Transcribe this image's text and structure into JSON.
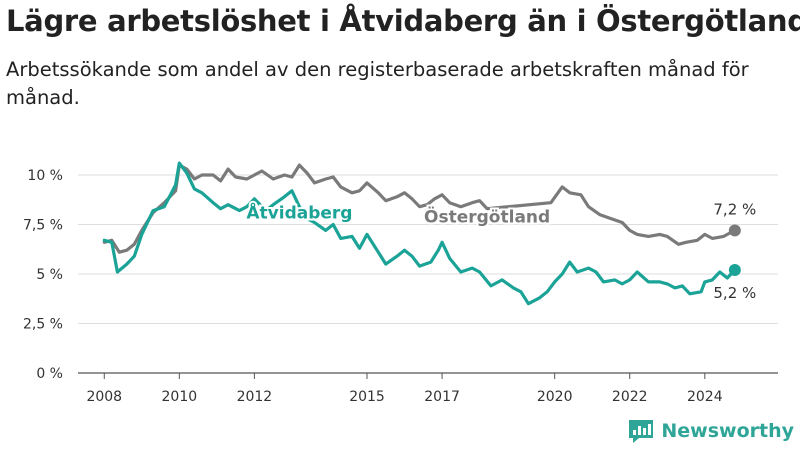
{
  "title": "Lägre arbetslöshet i Åtvidaberg än i Östergötland",
  "subtitle": "Arbetssökande som andel av den registerbaserade arbetskraften månad för månad.",
  "brand": {
    "name": "Newsworthy",
    "icon": "newsworthy-logo-icon"
  },
  "chart_data": {
    "type": "line",
    "title": "Lägre arbetslöshet i Åtvidaberg än i Östergötland",
    "subtitle": "Arbetssökande som andel av den registerbaserade arbetskraften månad för månad.",
    "xlabel": "",
    "ylabel": "",
    "xlim": [
      2007.3,
      2025.95
    ],
    "ylim": [
      0,
      10
    ],
    "grid": true,
    "x_ticks": [
      {
        "value": 2008,
        "label": "2008"
      },
      {
        "value": 2010,
        "label": "2010"
      },
      {
        "value": 2012,
        "label": "2012"
      },
      {
        "value": 2015,
        "label": "2015"
      },
      {
        "value": 2017,
        "label": "2017"
      },
      {
        "value": 2020,
        "label": "2020"
      },
      {
        "value": 2022,
        "label": "2022"
      },
      {
        "value": 2024,
        "label": "2024"
      }
    ],
    "y_ticks": [
      {
        "value": 0,
        "label": "0 %"
      },
      {
        "value": 2.5,
        "label": "2,5 %"
      },
      {
        "value": 5,
        "label": "5 %"
      },
      {
        "value": 7.5,
        "label": "7,5 %"
      },
      {
        "value": 10,
        "label": "10 %"
      }
    ],
    "series": [
      {
        "name": "Östergötland",
        "color": "#7a7a7a",
        "end_label": "7,2 %",
        "points": [
          [
            2008.0,
            6.6
          ],
          [
            2008.2,
            6.7
          ],
          [
            2008.4,
            6.1
          ],
          [
            2008.6,
            6.2
          ],
          [
            2008.8,
            6.5
          ],
          [
            2009.0,
            7.2
          ],
          [
            2009.3,
            8.1
          ],
          [
            2009.6,
            8.6
          ],
          [
            2009.9,
            9.2
          ],
          [
            2010.0,
            10.5
          ],
          [
            2010.2,
            10.3
          ],
          [
            2010.4,
            9.8
          ],
          [
            2010.6,
            10.0
          ],
          [
            2010.9,
            10.0
          ],
          [
            2011.1,
            9.7
          ],
          [
            2011.3,
            10.3
          ],
          [
            2011.5,
            9.9
          ],
          [
            2011.8,
            9.8
          ],
          [
            2012.0,
            10.0
          ],
          [
            2012.2,
            10.2
          ],
          [
            2012.5,
            9.8
          ],
          [
            2012.8,
            10.0
          ],
          [
            2013.0,
            9.9
          ],
          [
            2013.2,
            10.5
          ],
          [
            2013.4,
            10.1
          ],
          [
            2013.6,
            9.6
          ],
          [
            2013.9,
            9.8
          ],
          [
            2014.1,
            9.9
          ],
          [
            2014.3,
            9.4
          ],
          [
            2014.6,
            9.1
          ],
          [
            2014.8,
            9.2
          ],
          [
            2015.0,
            9.6
          ],
          [
            2015.3,
            9.1
          ],
          [
            2015.5,
            8.7
          ],
          [
            2015.8,
            8.9
          ],
          [
            2016.0,
            9.1
          ],
          [
            2016.2,
            8.8
          ],
          [
            2016.4,
            8.4
          ],
          [
            2016.6,
            8.5
          ],
          [
            2016.8,
            8.8
          ],
          [
            2017.0,
            9.0
          ],
          [
            2017.2,
            8.6
          ],
          [
            2017.5,
            8.4
          ],
          [
            2017.8,
            8.6
          ],
          [
            2018.0,
            8.7
          ],
          [
            2018.2,
            8.3
          ],
          [
            2019.9,
            8.6
          ],
          [
            2020.2,
            9.4
          ],
          [
            2020.4,
            9.1
          ],
          [
            2020.7,
            9.0
          ],
          [
            2020.9,
            8.4
          ],
          [
            2021.2,
            8.0
          ],
          [
            2021.5,
            7.8
          ],
          [
            2021.8,
            7.6
          ],
          [
            2022.0,
            7.2
          ],
          [
            2022.2,
            7.0
          ],
          [
            2022.5,
            6.9
          ],
          [
            2022.8,
            7.0
          ],
          [
            2023.0,
            6.9
          ],
          [
            2023.3,
            6.5
          ],
          [
            2023.5,
            6.6
          ],
          [
            2023.8,
            6.7
          ],
          [
            2024.0,
            7.0
          ],
          [
            2024.2,
            6.8
          ],
          [
            2024.5,
            6.9
          ],
          [
            2024.8,
            7.2
          ]
        ]
      },
      {
        "name": "Åtvidaberg",
        "color": "#1aa396",
        "end_label": "5,2 %",
        "points": [
          [
            2008.0,
            6.7
          ],
          [
            2008.2,
            6.6
          ],
          [
            2008.35,
            5.1
          ],
          [
            2008.6,
            5.5
          ],
          [
            2008.8,
            5.9
          ],
          [
            2009.0,
            7.0
          ],
          [
            2009.3,
            8.2
          ],
          [
            2009.6,
            8.4
          ],
          [
            2009.9,
            9.5
          ],
          [
            2010.0,
            10.6
          ],
          [
            2010.2,
            10.1
          ],
          [
            2010.4,
            9.3
          ],
          [
            2010.6,
            9.1
          ],
          [
            2010.9,
            8.6
          ],
          [
            2011.1,
            8.3
          ],
          [
            2011.3,
            8.5
          ],
          [
            2011.6,
            8.2
          ],
          [
            2011.8,
            8.4
          ],
          [
            2012.0,
            8.8
          ],
          [
            2012.3,
            8.2
          ],
          [
            2012.5,
            8.5
          ],
          [
            2012.8,
            8.9
          ],
          [
            2013.0,
            9.2
          ],
          [
            2013.2,
            8.4
          ],
          [
            2013.4,
            7.8
          ],
          [
            2013.6,
            7.6
          ],
          [
            2013.9,
            7.2
          ],
          [
            2014.1,
            7.5
          ],
          [
            2014.3,
            6.8
          ],
          [
            2014.6,
            6.9
          ],
          [
            2014.8,
            6.3
          ],
          [
            2015.0,
            7.0
          ],
          [
            2015.3,
            6.1
          ],
          [
            2015.5,
            5.5
          ],
          [
            2015.8,
            5.9
          ],
          [
            2016.0,
            6.2
          ],
          [
            2016.2,
            5.9
          ],
          [
            2016.4,
            5.4
          ],
          [
            2016.7,
            5.6
          ],
          [
            2016.9,
            6.2
          ],
          [
            2017.0,
            6.6
          ],
          [
            2017.2,
            5.8
          ],
          [
            2017.5,
            5.1
          ],
          [
            2017.8,
            5.3
          ],
          [
            2018.0,
            5.1
          ],
          [
            2018.3,
            4.4
          ],
          [
            2018.6,
            4.7
          ],
          [
            2018.9,
            4.3
          ],
          [
            2019.1,
            4.1
          ],
          [
            2019.3,
            3.5
          ],
          [
            2019.6,
            3.8
          ],
          [
            2019.8,
            4.1
          ],
          [
            2020.0,
            4.6
          ],
          [
            2020.2,
            5.0
          ],
          [
            2020.4,
            5.6
          ],
          [
            2020.6,
            5.1
          ],
          [
            2020.9,
            5.3
          ],
          [
            2021.1,
            5.1
          ],
          [
            2021.3,
            4.6
          ],
          [
            2021.6,
            4.7
          ],
          [
            2021.8,
            4.5
          ],
          [
            2022.0,
            4.7
          ],
          [
            2022.2,
            5.1
          ],
          [
            2022.5,
            4.6
          ],
          [
            2022.8,
            4.6
          ],
          [
            2023.0,
            4.5
          ],
          [
            2023.2,
            4.3
          ],
          [
            2023.4,
            4.4
          ],
          [
            2023.6,
            4.0
          ],
          [
            2023.9,
            4.1
          ],
          [
            2024.0,
            4.6
          ],
          [
            2024.2,
            4.7
          ],
          [
            2024.4,
            5.1
          ],
          [
            2024.6,
            4.8
          ],
          [
            2024.8,
            5.2
          ]
        ]
      }
    ],
    "annotations": [
      {
        "text": "Åtvidaberg",
        "series": "Åtvidaberg",
        "x": 2013.2,
        "y": 7.8
      },
      {
        "text": "Östergötland",
        "series": "Östergötland",
        "x": 2018.2,
        "y": 7.6
      }
    ]
  }
}
